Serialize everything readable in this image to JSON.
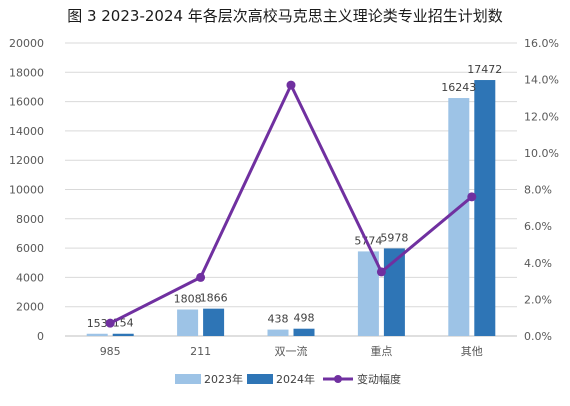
{
  "chart_data": {
    "type": "bar",
    "title": "图 3 2023-2024 年各层次高校马克思主义理论类专业招生计划数",
    "categories": [
      "985",
      "211",
      "双一流",
      "重点",
      "其他"
    ],
    "series": [
      {
        "name": "2023年",
        "type": "bar",
        "axis": "left",
        "color": "#9dc3e6",
        "values": [
          153,
          1808,
          438,
          5774,
          16243
        ]
      },
      {
        "name": "2024年",
        "type": "bar",
        "axis": "left",
        "color": "#2e75b6",
        "values": [
          154,
          1866,
          498,
          5978,
          17472
        ]
      },
      {
        "name": "变动幅度",
        "type": "line",
        "axis": "right",
        "color": "#7030a0",
        "values": [
          0.7,
          3.2,
          13.7,
          3.5,
          7.6
        ]
      }
    ],
    "left_axis": {
      "min": 0,
      "max": 20000,
      "step": 2000,
      "ticks": [
        "0",
        "2000",
        "4000",
        "6000",
        "8000",
        "10000",
        "12000",
        "14000",
        "16000",
        "18000",
        "20000"
      ]
    },
    "right_axis": {
      "min": 0,
      "max": 16,
      "step": 2,
      "ticks": [
        "0.0%",
        "2.0%",
        "4.0%",
        "6.0%",
        "8.0%",
        "10.0%",
        "12.0%",
        "14.0%",
        "16.0%"
      ]
    },
    "grid": true,
    "legend_position": "bottom",
    "watermark": "易度排名 EDU Ranking.cn"
  }
}
